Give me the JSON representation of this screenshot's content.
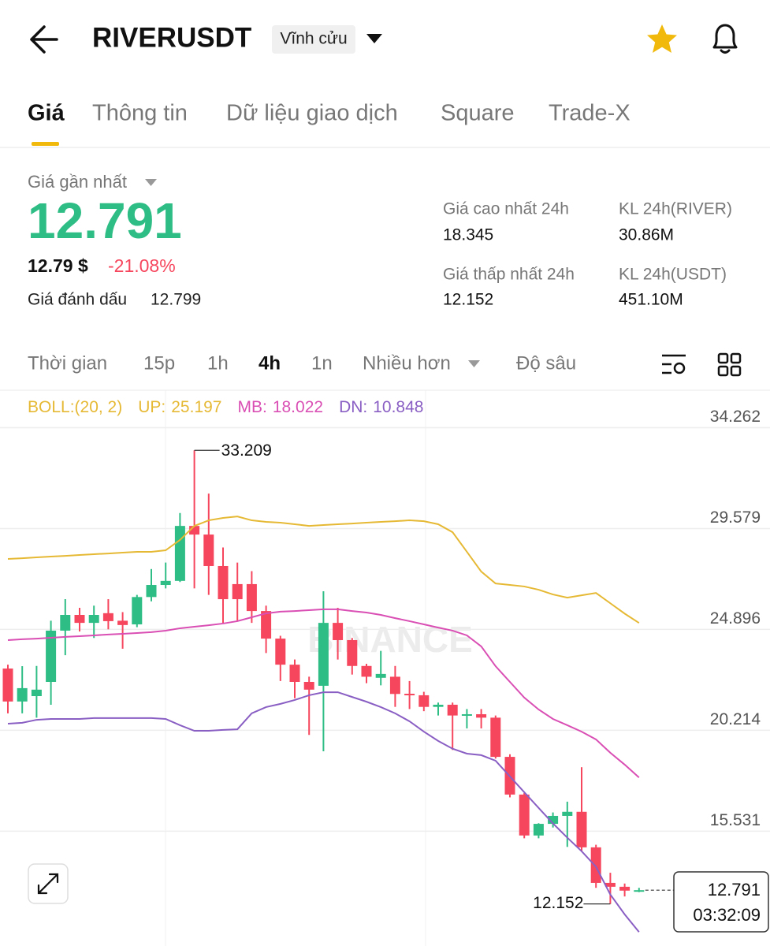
{
  "header": {
    "title": "RIVERUSDT",
    "badge": "Vĩnh cửu"
  },
  "tabs": [
    "Giá",
    "Thông tin",
    "Dữ liệu giao dịch",
    "Square",
    "Trade-X"
  ],
  "active_tab": 0,
  "price": {
    "label": "Giá gần nhất",
    "last": "12.791",
    "usd": "12.79 $",
    "change": "-21.08%",
    "mark_label": "Giá đánh dấu",
    "mark": "12.799"
  },
  "stats": [
    {
      "label": "Giá cao nhất 24h",
      "value": "18.345"
    },
    {
      "label": "KL 24h(RIVER)",
      "value": "30.86M"
    },
    {
      "label": "Giá thấp nhất 24h",
      "value": "12.152"
    },
    {
      "label": "KL 24h(USDT)",
      "value": "451.10M"
    }
  ],
  "intervals": [
    "Thời gian",
    "15p",
    "1h",
    "4h",
    "1n",
    "Nhiều hơn",
    "Độ sâu"
  ],
  "active_interval": 3,
  "chart_data": {
    "type": "candlestick",
    "indicator": "BOLL:(20, 2)",
    "watermark": "BINANCE",
    "countdown": "03:32:09",
    "up_color": "#2ebd85",
    "down_color": "#f6465d",
    "ylim": [
      10.2,
      36.0
    ],
    "yticks": [
      34.262,
      29.579,
      24.896,
      20.214,
      15.531
    ],
    "grid": true,
    "candles": [
      {
        "open": 23.08,
        "high": 23.26,
        "low": 21.0,
        "close": 21.55
      },
      {
        "open": 21.55,
        "high": 23.19,
        "low": 21.0,
        "close": 22.17
      },
      {
        "open": 21.8,
        "high": 23.2,
        "low": 20.8,
        "close": 22.1
      },
      {
        "open": 22.46,
        "high": 25.3,
        "low": 21.4,
        "close": 24.84
      },
      {
        "open": 24.84,
        "high": 26.3,
        "low": 23.7,
        "close": 25.57
      },
      {
        "open": 25.57,
        "high": 25.9,
        "low": 24.8,
        "close": 25.2
      },
      {
        "open": 25.2,
        "high": 26.0,
        "low": 24.5,
        "close": 25.57
      },
      {
        "open": 25.65,
        "high": 26.3,
        "low": 24.9,
        "close": 25.28
      },
      {
        "open": 25.3,
        "high": 25.7,
        "low": 24.0,
        "close": 25.1
      },
      {
        "open": 25.13,
        "high": 26.5,
        "low": 25.0,
        "close": 26.4
      },
      {
        "open": 26.4,
        "high": 27.7,
        "low": 26.2,
        "close": 26.96
      },
      {
        "open": 26.96,
        "high": 28.0,
        "low": 26.8,
        "close": 27.15
      },
      {
        "open": 27.15,
        "high": 30.3,
        "low": 27.1,
        "close": 29.7
      },
      {
        "open": 29.7,
        "high": 33.209,
        "low": 26.8,
        "close": 29.3
      },
      {
        "open": 29.3,
        "high": 31.2,
        "low": 26.5,
        "close": 27.84
      },
      {
        "open": 27.84,
        "high": 28.7,
        "low": 25.2,
        "close": 26.3
      },
      {
        "open": 27.0,
        "high": 28.0,
        "low": 25.3,
        "close": 26.3
      },
      {
        "open": 27.0,
        "high": 27.6,
        "low": 25.2,
        "close": 25.75
      },
      {
        "open": 25.75,
        "high": 26.0,
        "low": 23.8,
        "close": 24.47
      },
      {
        "open": 24.47,
        "high": 24.6,
        "low": 22.5,
        "close": 23.26
      },
      {
        "open": 23.26,
        "high": 23.5,
        "low": 21.7,
        "close": 22.46
      },
      {
        "open": 22.46,
        "high": 22.7,
        "low": 20.0,
        "close": 22.1
      },
      {
        "open": 22.28,
        "high": 26.67,
        "low": 19.24,
        "close": 25.2
      },
      {
        "open": 25.2,
        "high": 25.9,
        "low": 23.5,
        "close": 24.4
      },
      {
        "open": 24.4,
        "high": 24.5,
        "low": 22.8,
        "close": 23.2
      },
      {
        "open": 23.2,
        "high": 23.3,
        "low": 22.4,
        "close": 22.7
      },
      {
        "open": 22.65,
        "high": 23.9,
        "low": 22.3,
        "close": 22.83
      },
      {
        "open": 22.7,
        "high": 23.2,
        "low": 21.3,
        "close": 21.9
      },
      {
        "open": 21.91,
        "high": 22.5,
        "low": 21.2,
        "close": 21.84
      },
      {
        "open": 21.84,
        "high": 22.0,
        "low": 21.1,
        "close": 21.3
      },
      {
        "open": 21.3,
        "high": 21.5,
        "low": 20.9,
        "close": 21.4
      },
      {
        "open": 21.4,
        "high": 21.5,
        "low": 19.3,
        "close": 20.9
      },
      {
        "open": 20.89,
        "high": 21.2,
        "low": 20.3,
        "close": 20.96
      },
      {
        "open": 20.96,
        "high": 21.2,
        "low": 20.3,
        "close": 20.8
      },
      {
        "open": 20.8,
        "high": 20.9,
        "low": 18.9,
        "close": 18.98
      },
      {
        "open": 18.98,
        "high": 19.1,
        "low": 17.1,
        "close": 17.23
      },
      {
        "open": 17.23,
        "high": 17.3,
        "low": 15.2,
        "close": 15.33
      },
      {
        "open": 15.33,
        "high": 15.9,
        "low": 15.2,
        "close": 15.87
      },
      {
        "open": 15.87,
        "high": 16.4,
        "low": 15.7,
        "close": 16.24
      },
      {
        "open": 16.24,
        "high": 16.9,
        "low": 14.8,
        "close": 16.43
      },
      {
        "open": 16.43,
        "high": 18.5,
        "low": 14.6,
        "close": 14.78
      },
      {
        "open": 14.78,
        "high": 14.9,
        "low": 12.9,
        "close": 13.13
      },
      {
        "open": 13.13,
        "high": 13.6,
        "low": 12.152,
        "close": 12.95
      },
      {
        "open": 12.95,
        "high": 13.1,
        "low": 12.5,
        "close": 12.77
      },
      {
        "open": 12.77,
        "high": 12.9,
        "low": 12.7,
        "close": 12.791
      }
    ],
    "annotations": [
      {
        "candle": 13,
        "field": "high"
      },
      {
        "candle": 42,
        "field": "low"
      }
    ],
    "series": [
      {
        "name": "UP:",
        "color": "#e6b935",
        "values": [
          28.17,
          28.2,
          28.24,
          28.28,
          28.31,
          28.35,
          28.39,
          28.42,
          28.46,
          28.5,
          28.5,
          28.57,
          29.05,
          29.7,
          29.96,
          30.07,
          30.14,
          29.96,
          29.89,
          29.85,
          29.78,
          29.7,
          29.74,
          29.78,
          29.81,
          29.85,
          29.89,
          29.92,
          29.96,
          29.92,
          29.78,
          29.41,
          28.5,
          27.58,
          27.03,
          26.96,
          26.89,
          26.74,
          26.52,
          26.37,
          26.48,
          26.59,
          26.11,
          25.63,
          25.197
        ]
      },
      {
        "name": "MB:",
        "color": "#d94fb4",
        "values": [
          24.4,
          24.44,
          24.47,
          24.51,
          24.55,
          24.58,
          24.62,
          24.66,
          24.69,
          24.73,
          24.77,
          24.84,
          24.95,
          25.02,
          25.09,
          25.17,
          25.28,
          25.46,
          25.64,
          25.72,
          25.75,
          25.79,
          25.83,
          25.83,
          25.75,
          25.68,
          25.57,
          25.42,
          25.28,
          25.13,
          24.98,
          24.84,
          24.62,
          24.11,
          23.19,
          22.46,
          21.73,
          21.18,
          20.74,
          20.45,
          20.15,
          19.79,
          19.17,
          18.62,
          18.022
        ]
      },
      {
        "name": "DN:",
        "color": "#8a5fc4",
        "values": [
          20.52,
          20.56,
          20.7,
          20.74,
          20.74,
          20.74,
          20.78,
          20.78,
          20.78,
          20.78,
          20.78,
          20.74,
          20.45,
          20.19,
          20.19,
          20.23,
          20.26,
          21.0,
          21.29,
          21.44,
          21.62,
          21.84,
          21.98,
          21.98,
          21.76,
          21.54,
          21.29,
          21.0,
          20.63,
          20.15,
          19.72,
          19.36,
          19.13,
          19.06,
          18.8,
          18.07,
          17.34,
          16.61,
          15.89,
          15.23,
          14.6,
          13.88,
          12.59,
          11.67,
          10.848
        ]
      }
    ]
  }
}
